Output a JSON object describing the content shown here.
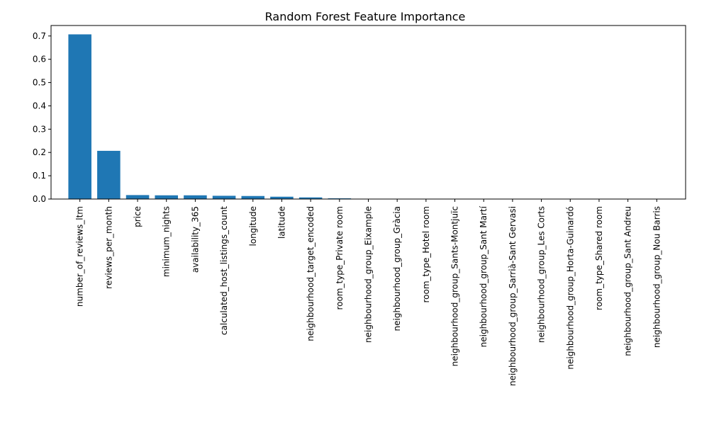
{
  "chart_data": {
    "type": "bar",
    "title": "Random Forest Feature Importance",
    "xlabel": "",
    "ylabel": "",
    "ylim": [
      0,
      0.745
    ],
    "yticks": [
      0.0,
      0.1,
      0.2,
      0.3,
      0.4,
      0.5,
      0.6,
      0.7
    ],
    "ytick_labels": [
      "0.0",
      "0.1",
      "0.2",
      "0.3",
      "0.4",
      "0.5",
      "0.6",
      "0.7"
    ],
    "grid": false,
    "bar_color": "#1f77b4",
    "categories": [
      "number_of_reviews_ltm",
      "reviews_per_month",
      "price",
      "minimum_nights",
      "availability_365",
      "calculated_host_listings_count",
      "longitude",
      "latitude",
      "neighbourhood_target_encoded",
      "room_type_Private room",
      "neighbourhood_group_Eixample",
      "neighbourhood_group_Gràcia",
      "room_type_Hotel room",
      "neighbourhood_group_Sants-Montjuïc",
      "neighbourhood_group_Sant Martí",
      "neighbourhood_group_Sarrià-Sant Gervasi",
      "neighbourhood_group_Les Corts",
      "neighbourhood_group_Horta-Guinardó",
      "room_type_Shared room",
      "neighbourhood_group_Sant Andreu",
      "neighbourhood_group_Nou Barris"
    ],
    "values": [
      0.707,
      0.207,
      0.017,
      0.016,
      0.016,
      0.014,
      0.013,
      0.01,
      0.007,
      0.003,
      0.001,
      0.0008,
      0.0006,
      0.0005,
      0.0004,
      0.0004,
      0.0003,
      0.0003,
      0.0002,
      0.0002,
      0.0001
    ]
  }
}
